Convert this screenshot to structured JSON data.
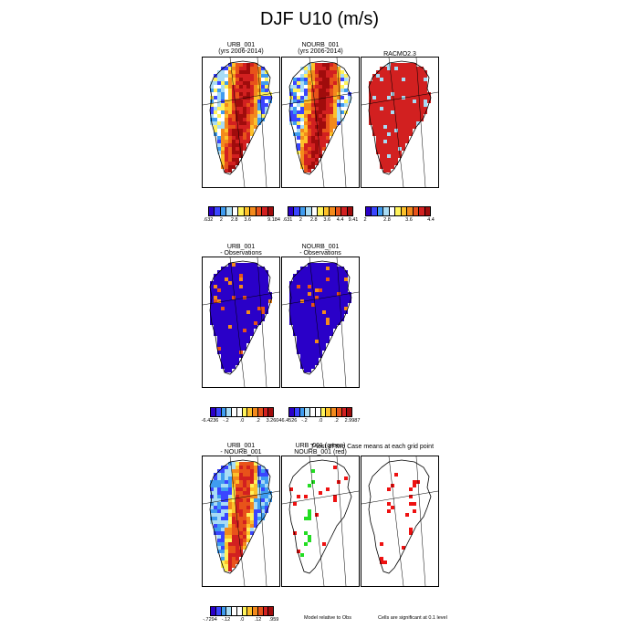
{
  "figure": {
    "title": "DJF U10 (m/s)"
  },
  "row1": {
    "panels": [
      {
        "line1": "URB_001",
        "line2": "(yrs 2006-2014)",
        "fill": "speed"
      },
      {
        "line1": "NOURB_001",
        "line2": "(yrs 2006-2014)",
        "fill": "speed"
      },
      {
        "line1": "RACMO2.3",
        "line2": "",
        "fill": "racmo"
      }
    ],
    "colorbars": [
      {
        "labels": [
          ".632",
          "2",
          "2.8",
          "3.6",
          "",
          "9.184"
        ]
      },
      {
        "labels": [
          ".631",
          "2",
          "2.8",
          "3.6",
          "4.4",
          "9.41"
        ]
      },
      {
        "labels": [
          "2",
          "2.8",
          "3.6",
          "4.4"
        ]
      }
    ]
  },
  "row2": {
    "panels": [
      {
        "line1": "URB_001",
        "line2": "- Observations",
        "fill": "diffobs"
      },
      {
        "line1": "NOURB_001",
        "line2": "- Observations",
        "fill": "diffobs"
      }
    ],
    "colorbars": [
      {
        "labels": [
          "-6.4236",
          "-.2",
          ".0",
          ".2",
          "3.2604"
        ]
      },
      {
        "labels": [
          "-6.4526",
          "-.2",
          ".0",
          ".2",
          "2.9987"
        ]
      }
    ]
  },
  "row3": {
    "panels": [
      {
        "line1": "URB_001",
        "line2": "- NOURB_001",
        "fill": "diffcase"
      },
      {
        "line1": "URB_001 (green)",
        "line2": "NOURB_001 (red)",
        "fill": "greenred"
      },
      {
        "line1": "",
        "line2": "",
        "fill": "sig"
      }
    ],
    "ttest_title": "T-test of two Case means at each grid point",
    "colorbar": {
      "labels": [
        "-.7294",
        "-.12",
        ".0",
        ".12",
        ".959"
      ]
    },
    "note_model": "Model relative to Obs",
    "note_sig": "Cells are significant at 0.1 level"
  },
  "palettes": {
    "speed": [
      "#2a00c8",
      "#3a45ff",
      "#3f9cf0",
      "#a8dcf5",
      "#ffffff",
      "#fff35a",
      "#fdc12a",
      "#f38a1c",
      "#e8531a",
      "#d22020",
      "#a00c0c"
    ],
    "racmo": [
      "#2a00c8",
      "#3a45ff",
      "#3f9cf0",
      "#a8dcf5",
      "#ffffff",
      "#fff35a",
      "#fdc12a",
      "#f38a1c",
      "#e8531a",
      "#d22020",
      "#a00c0c"
    ],
    "diff": [
      "#2a00c8",
      "#3a45ff",
      "#3f9cf0",
      "#a8dcf5",
      "#ffffff",
      "#ffffff",
      "#fff35a",
      "#fdc12a",
      "#f38a1c",
      "#e8531a",
      "#d22020",
      "#a00c0c"
    ],
    "green": "#22dd22",
    "red": "#ee1111",
    "coast": "#000000"
  }
}
